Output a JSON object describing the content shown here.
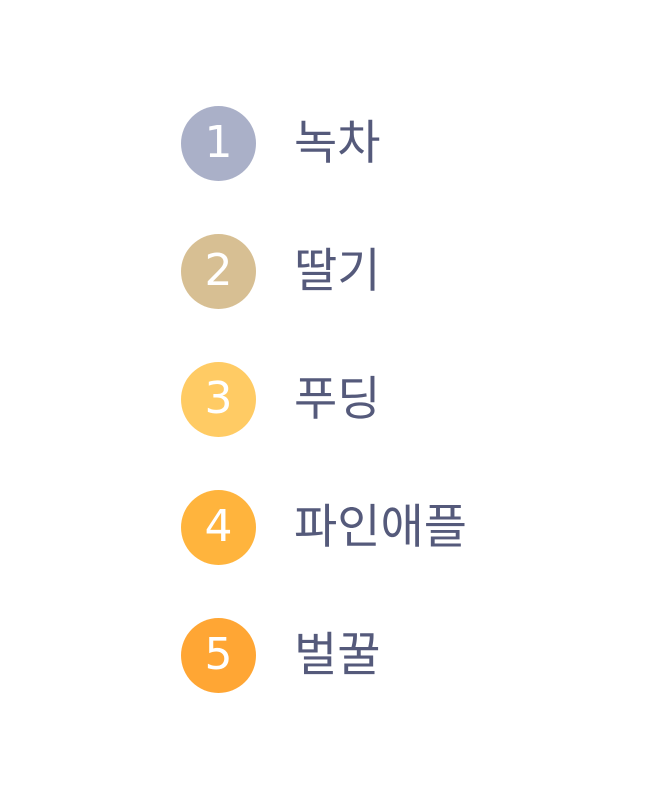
{
  "ranking": {
    "items": [
      {
        "rank": "1",
        "label": "녹차",
        "color": "#aab0c8"
      },
      {
        "rank": "2",
        "label": "딸기",
        "color": "#d7bf93"
      },
      {
        "rank": "3",
        "label": "푸딩",
        "color": "#ffcb64"
      },
      {
        "rank": "4",
        "label": "파인애플",
        "color": "#ffb43d"
      },
      {
        "rank": "5",
        "label": "벌꿀",
        "color": "#ffa634"
      }
    ]
  }
}
